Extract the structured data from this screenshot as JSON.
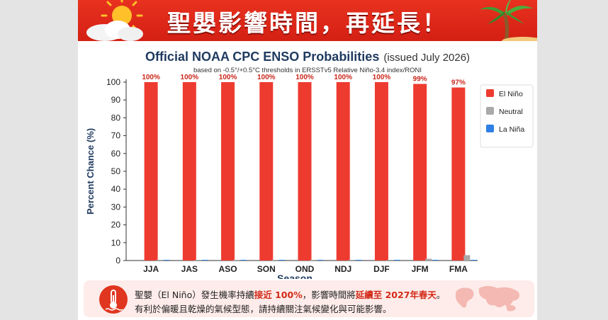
{
  "banner": {
    "title": "聖嬰影響時間，再延長！"
  },
  "chart_data": {
    "type": "bar",
    "title": "Official NOAA CPC ENSO Probabilities",
    "title_suffix": "(issued July 2026)",
    "subtitle": "based on -0.5°/+0.5°C thresholds in ERSSTv5 Relative Niño-3.4 index/RONI",
    "xlabel": "Season",
    "ylabel": "Percent Chance (%)",
    "ylim": [
      0,
      100
    ],
    "yticks": [
      0,
      10,
      20,
      30,
      40,
      50,
      60,
      70,
      80,
      90,
      100
    ],
    "grid": false,
    "legend_position": "right",
    "categories": [
      "JJA",
      "JAS",
      "ASO",
      "SON",
      "OND",
      "NDJ",
      "DJF",
      "JFM",
      "FMA"
    ],
    "series": [
      {
        "name": "El Niño",
        "color": "#ee3b30",
        "values": [
          100,
          100,
          100,
          100,
          100,
          100,
          100,
          99,
          97
        ]
      },
      {
        "name": "Neutral",
        "color": "#a9a9a9",
        "values": [
          0,
          0,
          0,
          0,
          0,
          0,
          0,
          1,
          3
        ]
      },
      {
        "name": "La Niña",
        "color": "#2f7fe6",
        "values": [
          0,
          0,
          0,
          0,
          0,
          0,
          0,
          0,
          0
        ]
      }
    ],
    "data_labels": [
      "100%",
      "100%",
      "100%",
      "100%",
      "100%",
      "100%",
      "100%",
      "99%",
      "97%"
    ]
  },
  "footer": {
    "icon": "thermometer-icon",
    "line1_parts": [
      {
        "text": "聖嬰（El Niño）發生機率持續",
        "hl": false
      },
      {
        "text": "接近 100%",
        "hl": true
      },
      {
        "text": "，影響時間將",
        "hl": false
      },
      {
        "text": "延續至 2027年春天",
        "hl": true
      },
      {
        "text": "。",
        "hl": false
      }
    ],
    "line2": "有利於偏暖且乾燥的氣候型態，請持續關注氣候變化與可能影響。"
  },
  "colors": {
    "banner": "#e0291a",
    "el_nino": "#ee3b30",
    "neutral": "#a9a9a9",
    "la_nina": "#2f7fe6"
  }
}
